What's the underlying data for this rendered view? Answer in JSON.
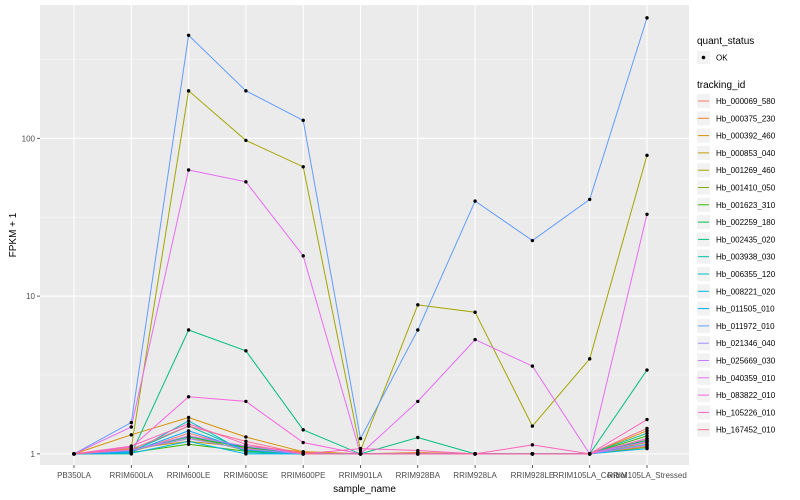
{
  "chart_data": {
    "type": "line",
    "xlabel": "sample_name",
    "ylabel": "FPKM + 1",
    "y_scale": "log10",
    "ylim": [
      0.85,
      700
    ],
    "y_ticks": [
      {
        "value": 1,
        "label": "1"
      },
      {
        "value": 10,
        "label": "10"
      },
      {
        "value": 100,
        "label": "100"
      }
    ],
    "categories": [
      "PB350LA",
      "RRIM600LA",
      "RRIM600LE",
      "RRIM600SE",
      "RRIM600PE",
      "RRIM901LA",
      "RRIM928BA",
      "RRIM928LA",
      "RRIM928LE",
      "RRIM105LA_Control",
      "RRIM105LA_Stressed"
    ],
    "grid": true,
    "legend_placement": "right",
    "legend_quant": {
      "title": "quant_status",
      "items": [
        "OK"
      ]
    },
    "legend_series_title": "tracking_id",
    "series": [
      {
        "name": "Hb_000069_580",
        "color": "#F8766D",
        "values": [
          1,
          1.03,
          1.35,
          1.08,
          1.02,
          1.0,
          1.0,
          1.0,
          1.0,
          1.0,
          1.12
        ]
      },
      {
        "name": "Hb_000375_230",
        "color": "#EA8331",
        "values": [
          1,
          1.05,
          1.25,
          1.12,
          1.03,
          1.0,
          1.02,
          1.0,
          1.0,
          1.0,
          1.18
        ]
      },
      {
        "name": "Hb_000392_460",
        "color": "#D89000",
        "values": [
          1,
          1.32,
          1.7,
          1.28,
          1.03,
          1.0,
          1.0,
          1.0,
          1.0,
          1.0,
          1.4
        ]
      },
      {
        "name": "Hb_000853_040",
        "color": "#C09B00",
        "values": [
          1,
          1.08,
          1.2,
          1.1,
          1.0,
          1.0,
          1.0,
          1.0,
          1.0,
          1.0,
          1.25
        ]
      },
      {
        "name": "Hb_001269_460",
        "color": "#A3A500",
        "values": [
          1,
          1.1,
          200,
          97,
          66,
          1.05,
          8.8,
          7.9,
          1.5,
          4.0,
          78
        ]
      },
      {
        "name": "Hb_001410_050",
        "color": "#7CAE00",
        "values": [
          1,
          1.04,
          1.3,
          1.05,
          1.0,
          1.0,
          1.0,
          1.0,
          1.0,
          1.0,
          1.1
        ]
      },
      {
        "name": "Hb_001623_310",
        "color": "#39B600",
        "values": [
          1,
          1.02,
          1.15,
          1.04,
          1.0,
          1.0,
          1.0,
          1.0,
          1.0,
          1.0,
          1.3
        ]
      },
      {
        "name": "Hb_002259_180",
        "color": "#00BB4E",
        "values": [
          1,
          1.06,
          1.28,
          1.1,
          1.0,
          1.0,
          1.0,
          1.0,
          1.0,
          1.0,
          1.22
        ]
      },
      {
        "name": "Hb_002435_020",
        "color": "#00BF7D",
        "values": [
          1,
          1.0,
          6.1,
          4.5,
          1.42,
          1.0,
          1.27,
          1.0,
          1.0,
          1.0,
          3.4
        ]
      },
      {
        "name": "Hb_003938_030",
        "color": "#00C1A3",
        "values": [
          1,
          1.04,
          1.5,
          1.05,
          1.0,
          1.0,
          1.0,
          1.0,
          1.0,
          1.0,
          1.35
        ]
      },
      {
        "name": "Hb_006355_120",
        "color": "#00BFC4",
        "values": [
          1,
          1.02,
          1.62,
          1.02,
          1.0,
          1.0,
          1.0,
          1.0,
          1.0,
          1.0,
          1.15
        ]
      },
      {
        "name": "Hb_008221_020",
        "color": "#00B8E5",
        "values": [
          1,
          1.01,
          1.2,
          1.0,
          1.0,
          1.0,
          1.0,
          1.0,
          1.0,
          1.0,
          1.08
        ]
      },
      {
        "name": "Hb_011505_010",
        "color": "#00A9FF",
        "values": [
          1,
          1.03,
          1.4,
          1.06,
          1.0,
          1.0,
          1.0,
          1.0,
          1.0,
          1.0,
          1.2
        ]
      },
      {
        "name": "Hb_011972_010",
        "color": "#619CFF",
        "values": [
          1,
          1.58,
          450,
          200,
          130,
          1.25,
          6.1,
          40,
          22.5,
          41,
          580
        ]
      },
      {
        "name": "Hb_021346_040",
        "color": "#9F8CFF",
        "values": [
          1,
          1.06,
          1.25,
          1.07,
          1.0,
          1.0,
          1.0,
          1.0,
          1.0,
          1.0,
          1.14
        ]
      },
      {
        "name": "Hb_025669_030",
        "color": "#C77CFF",
        "values": [
          1,
          1.05,
          1.3,
          1.12,
          1.0,
          1.0,
          1.0,
          1.0,
          1.0,
          1.0,
          1.2
        ]
      },
      {
        "name": "Hb_040359_010",
        "color": "#E76BF3",
        "values": [
          1,
          1.48,
          63,
          53,
          18,
          1.0,
          2.15,
          5.3,
          3.6,
          1.0,
          33
        ]
      },
      {
        "name": "Hb_083822_010",
        "color": "#F763E0",
        "values": [
          1,
          1.1,
          2.3,
          2.15,
          1.18,
          1.0,
          1.0,
          1.0,
          1.0,
          1.0,
          1.25
        ]
      },
      {
        "name": "Hb_105226_010",
        "color": "#FF62BC",
        "values": [
          1,
          1.12,
          1.55,
          1.15,
          1.0,
          1.08,
          1.05,
          1.0,
          1.14,
          1.0,
          1.65
        ]
      },
      {
        "name": "Hb_167452_010",
        "color": "#FF6C91",
        "values": [
          1,
          1.07,
          1.5,
          1.2,
          1.0,
          1.0,
          1.0,
          1.0,
          1.0,
          1.0,
          1.45
        ]
      }
    ]
  }
}
